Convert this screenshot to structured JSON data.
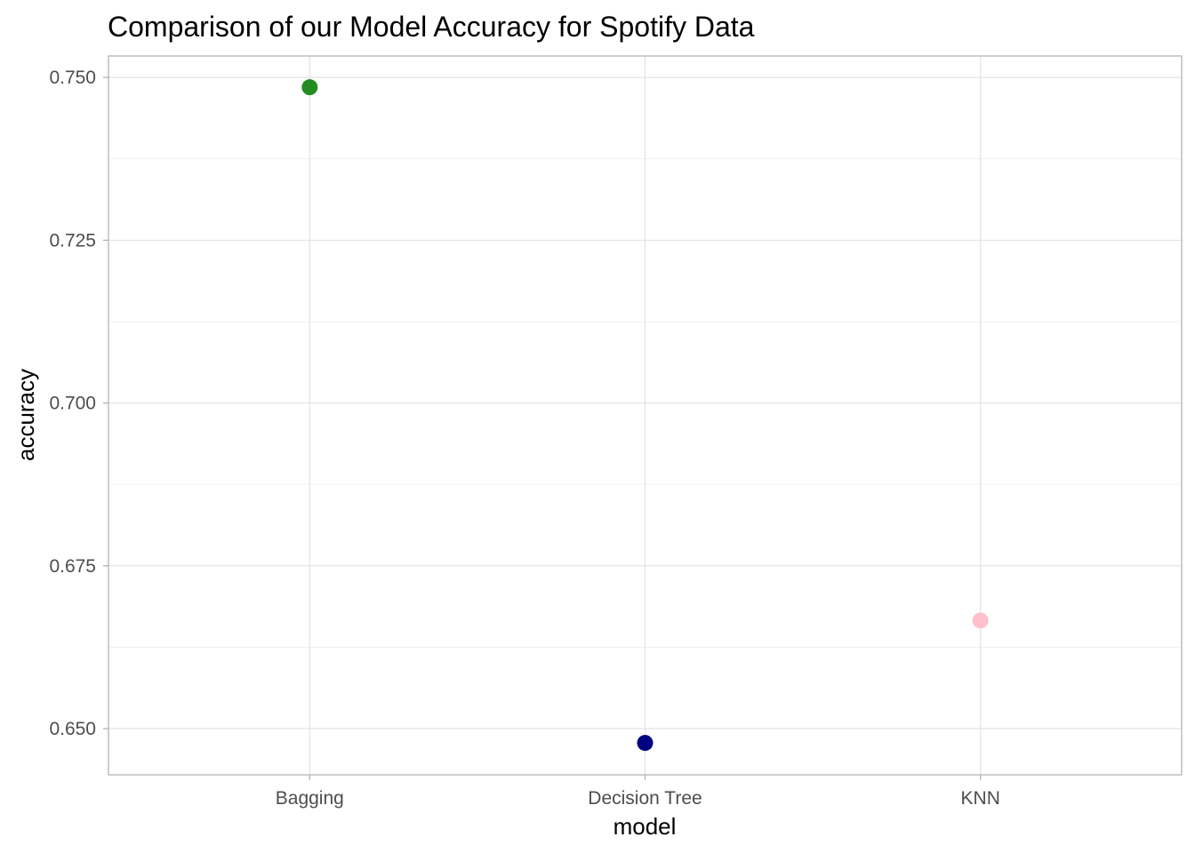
{
  "chart_data": {
    "type": "scatter",
    "title": "Comparison of our Model Accuracy for Spotify Data",
    "xlabel": "model",
    "ylabel": "accuracy",
    "categories": [
      "Bagging",
      "Decision Tree",
      "KNN"
    ],
    "values": [
      0.7485,
      0.6478,
      0.6666
    ],
    "point_colors": [
      "#228B22",
      "#000080",
      "#FFC0CB"
    ],
    "ylim": [
      0.6429,
      0.7533
    ],
    "y_ticks": [
      0.65,
      0.675,
      0.7,
      0.725,
      0.75
    ],
    "y_tick_labels": [
      "0.650",
      "0.675",
      "0.700",
      "0.725",
      "0.750"
    ],
    "grid": true,
    "legend": "none"
  }
}
